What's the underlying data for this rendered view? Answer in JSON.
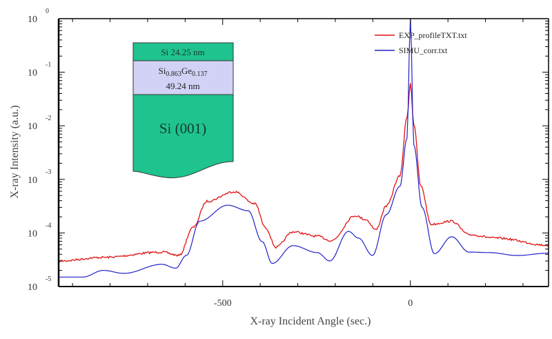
{
  "chart_data": {
    "type": "line",
    "title": "",
    "xlabel": "X-ray Incident Angle (sec.)",
    "ylabel": "X-ray Intensity (a.u.)",
    "xlim": [
      -937,
      368
    ],
    "ylim": [
      1e-05,
      1
    ],
    "yscale": "log",
    "grid": false,
    "legend_position": "top-right",
    "x_tick_labels": [
      {
        "value": -500,
        "label": "-500"
      },
      {
        "value": 0,
        "label": "0"
      }
    ],
    "y_tick_labels": [
      {
        "value": 1,
        "base": "10",
        "exp": "0"
      },
      {
        "value": 0.1,
        "base": "10",
        "exp": "-1"
      },
      {
        "value": 0.01,
        "base": "10",
        "exp": "-2"
      },
      {
        "value": 0.001,
        "base": "10",
        "exp": "-3"
      },
      {
        "value": 0.0001,
        "base": "10",
        "exp": "-4"
      },
      {
        "value": 1e-05,
        "base": "10",
        "exp": "-5"
      }
    ],
    "series": [
      {
        "name": "EXP_profileTXT.txt",
        "color": "#e01010",
        "x": [
          -937,
          -818,
          -662,
          -616,
          -579,
          -542,
          -469,
          -414,
          -386,
          -358,
          -313,
          -248,
          -211,
          -147,
          -119,
          -92,
          -64,
          -28,
          -9,
          0,
          9,
          28,
          55,
          110,
          156,
          230,
          368
        ],
        "y": [
          3e-05,
          3.5e-05,
          4.4e-05,
          3.8e-05,
          0.000126,
          0.00039,
          0.00059,
          0.00035,
          0.000126,
          5.4e-05,
          0.000105,
          8.7e-05,
          7.2e-05,
          0.00021,
          0.000178,
          0.000115,
          0.00032,
          0.00115,
          0.0145,
          0.063,
          0.0107,
          0.00074,
          0.000145,
          0.000166,
          9.3e-05,
          8e-05,
          5.9e-05
        ]
      },
      {
        "name": "SIMU_corr.txt",
        "color": "#2020c8",
        "x": [
          -937,
          -873,
          -818,
          -763,
          -662,
          -625,
          -597,
          -561,
          -487,
          -432,
          -395,
          -368,
          -313,
          -248,
          -215,
          -165,
          -138,
          -101,
          -64,
          -28,
          -9,
          0,
          9,
          31,
          64,
          110,
          156,
          211,
          284,
          368
        ],
        "y": [
          1.5e-05,
          1.5e-05,
          2e-05,
          1.76e-05,
          2.6e-05,
          2.2e-05,
          3.8e-05,
          0.000166,
          0.00033,
          0.00026,
          6.9e-05,
          2.7e-05,
          5.8e-05,
          4.3e-05,
          3e-05,
          0.000107,
          8e-05,
          3.8e-05,
          0.00022,
          0.00074,
          0.0059,
          1.0,
          0.0044,
          0.0003,
          4.1e-05,
          8.5e-05,
          4.4e-05,
          4.3e-05,
          3.8e-05,
          4.2e-05
        ]
      }
    ],
    "inset": {
      "layers": [
        {
          "label": "Si 24.25 nm",
          "color": "#1fc38f"
        },
        {
          "label_parts": [
            "Si",
            "0.863",
            "Ge",
            "0.137"
          ],
          "label_line2": "49.24 nm",
          "color": "#d2d2f6"
        },
        {
          "label": "Si (001)",
          "color": "#1fc38f"
        }
      ]
    }
  }
}
